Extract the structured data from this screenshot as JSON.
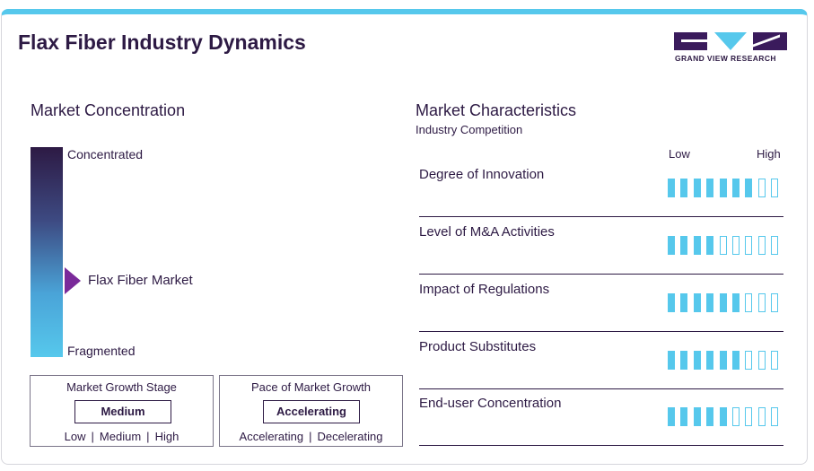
{
  "header": {
    "title": "Flax Fiber Industry Dynamics",
    "logo_text": "GRAND VIEW RESEARCH"
  },
  "concentration": {
    "title": "Market Concentration",
    "top_label": "Concentrated",
    "bottom_label": "Fragmented",
    "marker_label": "Flax Fiber Market"
  },
  "growth_stage": {
    "title": "Market Growth Stage",
    "value": "Medium",
    "options": [
      "Low",
      "Medium",
      "High"
    ]
  },
  "growth_pace": {
    "title": "Pace of Market Growth",
    "value": "Accelerating",
    "options": [
      "Accelerating",
      "Decelerating"
    ]
  },
  "characteristics": {
    "title": "Market Characteristics",
    "subtitle": "Industry Competition",
    "low_label": "Low",
    "high_label": "High",
    "segments_total": 9,
    "rows": [
      {
        "label": "Degree of Innovation",
        "level": 7
      },
      {
        "label": "Level of M&A Activities",
        "level": 4
      },
      {
        "label": "Impact of Regulations",
        "level": 6
      },
      {
        "label": "Product Substitutes",
        "level": 6
      },
      {
        "label": "End-user Concentration",
        "level": 5
      }
    ]
  },
  "colors": {
    "dark": "#2d1a44",
    "accent": "#56c8ec",
    "marker": "#7a2a9a"
  }
}
